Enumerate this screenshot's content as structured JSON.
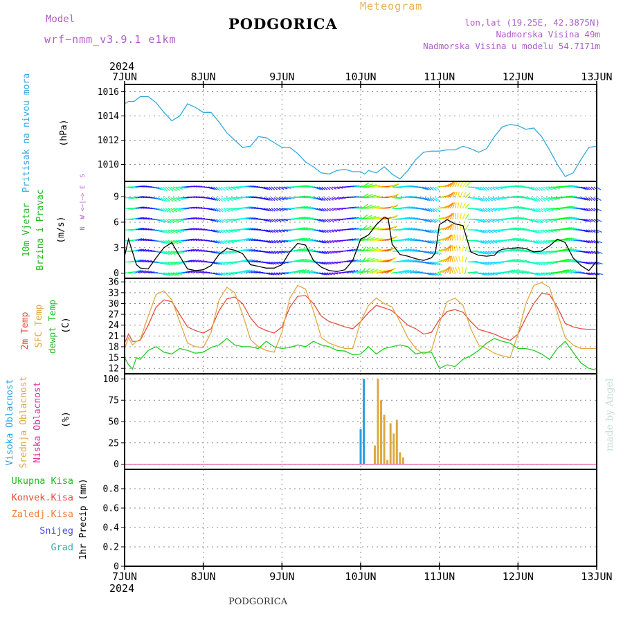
{
  "header": {
    "model_label": "Model",
    "model_name": "wrf−nmm_v3.9.1 e1km",
    "title": "PODGORICA",
    "meteogram": "Meteogram",
    "lonlat": "lon,lat (19.25E, 42.3875N)",
    "elevation": "Nadmorska Visina 49m",
    "model_elevation": "Nadmorska Visina u modelu 54.7171m"
  },
  "footer": {
    "city": "PODGORICA",
    "made_by": "made by Angel"
  },
  "colors": {
    "pressure": "#33aadd",
    "temp2m": "#e84c3d",
    "sfc_temp": "#e0a840",
    "dewpoint": "#22cc22",
    "high_cloud": "#2a9fe0",
    "mid_cloud": "#e0a840",
    "low_cloud": "#e02f9a",
    "purple": "#b05acc"
  },
  "chart_data": {
    "type": "line",
    "x_axis": {
      "year_label": "2024",
      "ticks": [
        "7JUN",
        "8JUN",
        "9JUN",
        "10JUN",
        "11JUN",
        "12JUN",
        "13JUN"
      ]
    },
    "panels": [
      {
        "id": "pressure",
        "ylabels": [
          "Pritisak na nivou mora"
        ],
        "unit": "(hPa)",
        "ylim": [
          1008.6,
          1016.6
        ],
        "yticks": [
          1010,
          1012,
          1014,
          1016
        ],
        "series": [
          {
            "key": "pressure",
            "x": [
              0,
              0.05,
              0.12,
              0.2,
              0.3,
              0.4,
              0.5,
              0.6,
              0.7,
              0.8,
              0.9,
              1.0,
              1.1,
              1.2,
              1.3,
              1.4,
              1.5,
              1.6,
              1.7,
              1.8,
              1.9,
              2.0,
              2.1,
              2.2,
              2.3,
              2.4,
              2.5,
              2.6,
              2.7,
              2.8,
              2.9,
              3.0,
              3.05,
              3.1,
              3.2,
              3.3,
              3.4,
              3.5,
              3.6,
              3.7,
              3.8,
              3.9,
              4.0,
              4.1,
              4.2,
              4.3,
              4.4,
              4.5,
              4.6,
              4.7,
              4.8,
              4.9,
              5.0,
              5.1,
              5.2,
              5.3,
              5.4,
              5.5,
              5.6,
              5.7,
              5.8,
              5.9,
              6.0
            ],
            "y": [
              1015.0,
              1015.2,
              1015.2,
              1015.6,
              1015.6,
              1015.1,
              1014.3,
              1013.6,
              1014.0,
              1015.0,
              1014.7,
              1014.3,
              1014.3,
              1013.5,
              1012.6,
              1012.0,
              1011.4,
              1011.5,
              1012.3,
              1012.2,
              1011.8,
              1011.4,
              1011.4,
              1010.9,
              1010.2,
              1009.8,
              1009.3,
              1009.2,
              1009.5,
              1009.6,
              1009.4,
              1009.4,
              1009.2,
              1009.5,
              1009.3,
              1009.8,
              1009.2,
              1008.8,
              1009.5,
              1010.4,
              1011.0,
              1011.1,
              1011.1,
              1011.2,
              1011.2,
              1011.5,
              1011.3,
              1011.0,
              1011.3,
              1012.3,
              1013.1,
              1013.3,
              1013.2,
              1012.9,
              1013.0,
              1012.3,
              1011.2,
              1010.0,
              1009.0,
              1009.3,
              1010.4,
              1011.4,
              1011.5
            ]
          }
        ]
      },
      {
        "id": "wind",
        "ylabels": [
          "10m Vjetar",
          "Brzina i Pravac"
        ],
        "unit": "(m/s)",
        "compass": "N  W <—|—> E  S",
        "ylim": [
          -0.6,
          10.8
        ],
        "yticks": [
          0,
          3,
          6,
          9
        ],
        "series": [
          {
            "key": "wind_speed",
            "x": [
              0,
              0.05,
              0.1,
              0.15,
              0.2,
              0.3,
              0.4,
              0.5,
              0.6,
              0.7,
              0.8,
              0.9,
              1.0,
              1.1,
              1.2,
              1.3,
              1.4,
              1.5,
              1.6,
              1.7,
              1.8,
              1.9,
              2.0,
              2.1,
              2.2,
              2.3,
              2.4,
              2.5,
              2.6,
              2.7,
              2.8,
              2.9,
              3.0,
              3.1,
              3.2,
              3.3,
              3.35,
              3.4,
              3.5,
              3.6,
              3.7,
              3.8,
              3.9,
              3.95,
              4.0,
              4.1,
              4.2,
              4.3,
              4.4,
              4.5,
              4.6,
              4.7,
              4.75,
              4.8,
              4.9,
              5.0,
              5.1,
              5.2,
              5.3,
              5.4,
              5.5,
              5.6,
              5.7,
              5.8,
              5.9,
              6.0
            ],
            "y": [
              2.0,
              4.0,
              2.5,
              1.0,
              0.6,
              0.5,
              1.8,
              3.0,
              3.6,
              2.0,
              0.5,
              0.3,
              0.4,
              0.9,
              2.2,
              2.9,
              2.7,
              2.3,
              1.0,
              0.8,
              0.6,
              0.6,
              1.0,
              2.5,
              3.5,
              3.3,
              1.5,
              0.7,
              0.3,
              0.2,
              0.4,
              1.5,
              4.0,
              4.5,
              5.7,
              6.6,
              6.4,
              3.4,
              2.2,
              2.0,
              1.7,
              1.5,
              1.8,
              2.4,
              5.7,
              6.3,
              5.8,
              5.6,
              2.5,
              2.1,
              2.0,
              2.1,
              2.6,
              2.8,
              2.9,
              3.0,
              2.9,
              2.5,
              2.6,
              3.2,
              4.0,
              3.6,
              1.8,
              0.9,
              0.3,
              1.4
            ]
          }
        ]
      },
      {
        "id": "temperature",
        "ylabels": [
          "2m Temp",
          "SFC Temp",
          "dewpt Temp"
        ],
        "unit": "(C)",
        "ylim": [
          10.5,
          37
        ],
        "yticks": [
          12,
          15,
          18,
          21,
          24,
          27,
          30,
          33,
          36
        ],
        "series": [
          {
            "key": "temp2m",
            "x": [
              0,
              0.05,
              0.1,
              0.15,
              0.2,
              0.3,
              0.4,
              0.5,
              0.6,
              0.7,
              0.8,
              0.9,
              1.0,
              1.1,
              1.2,
              1.3,
              1.4,
              1.5,
              1.6,
              1.7,
              1.8,
              1.9,
              2.0,
              2.1,
              2.2,
              2.3,
              2.4,
              2.5,
              2.6,
              2.7,
              2.8,
              2.9,
              3.0,
              3.1,
              3.2,
              3.3,
              3.4,
              3.5,
              3.6,
              3.7,
              3.8,
              3.9,
              4.0,
              4.1,
              4.2,
              4.3,
              4.4,
              4.5,
              4.6,
              4.7,
              4.8,
              4.9,
              5.0,
              5.1,
              5.2,
              5.3,
              5.4,
              5.5,
              5.6,
              5.7,
              5.8,
              5.9,
              6.0
            ],
            "y": [
              19.0,
              21.5,
              19.5,
              19.5,
              19.8,
              24.0,
              29.0,
              31.0,
              30.5,
              27.0,
              23.5,
              22.5,
              21.8,
              23.0,
              28.0,
              31.3,
              31.8,
              30.0,
              26.0,
              23.5,
              22.5,
              21.8,
              23.5,
              29.0,
              32.0,
              32.2,
              30.0,
              26.5,
              25.0,
              24.3,
              23.5,
              23.0,
              25.0,
              27.5,
              29.5,
              28.8,
              28.0,
              26.0,
              24.0,
              23.0,
              21.5,
              22.0,
              25.5,
              27.8,
              28.3,
              27.6,
              25.0,
              22.8,
              22.2,
              21.5,
              20.5,
              19.8,
              21.5,
              26.0,
              30.0,
              32.8,
              32.5,
              29.0,
              24.5,
              23.5,
              23.0,
              22.8,
              22.8
            ]
          },
          {
            "key": "sfc_temp",
            "x": [
              0,
              0.05,
              0.1,
              0.15,
              0.2,
              0.3,
              0.4,
              0.5,
              0.6,
              0.7,
              0.8,
              0.9,
              1.0,
              1.1,
              1.2,
              1.3,
              1.4,
              1.5,
              1.6,
              1.7,
              1.8,
              1.9,
              2.0,
              2.1,
              2.2,
              2.3,
              2.4,
              2.5,
              2.6,
              2.7,
              2.8,
              2.9,
              3.0,
              3.1,
              3.2,
              3.3,
              3.4,
              3.5,
              3.6,
              3.7,
              3.8,
              3.9,
              4.0,
              4.1,
              4.2,
              4.3,
              4.4,
              4.5,
              4.6,
              4.7,
              4.8,
              4.9,
              5.0,
              5.1,
              5.2,
              5.3,
              5.4,
              5.5,
              5.6,
              5.7,
              5.8,
              5.9,
              6.0
            ],
            "y": [
              17.5,
              20.5,
              18.5,
              19.5,
              20.0,
              26.5,
              32.5,
              33.5,
              31.0,
              25.0,
              19.0,
              18.0,
              17.8,
              22.0,
              31.0,
              34.5,
              33.0,
              27.0,
              20.0,
              18.0,
              17.0,
              16.5,
              22.0,
              31.5,
              35.0,
              34.0,
              28.0,
              20.5,
              19.0,
              18.2,
              17.5,
              17.5,
              25.0,
              29.5,
              31.5,
              30.0,
              29.0,
              25.0,
              20.5,
              17.5,
              16.0,
              17.0,
              24.5,
              30.5,
              31.5,
              29.5,
              23.0,
              18.5,
              17.5,
              16.2,
              15.5,
              15.0,
              21.5,
              30.0,
              35.0,
              35.8,
              34.5,
              27.5,
              20.5,
              18.5,
              17.5,
              17.5,
              17.5
            ]
          },
          {
            "key": "dewpoint",
            "x": [
              0,
              0.05,
              0.1,
              0.15,
              0.2,
              0.3,
              0.4,
              0.5,
              0.6,
              0.7,
              0.8,
              0.9,
              1.0,
              1.1,
              1.2,
              1.3,
              1.4,
              1.5,
              1.6,
              1.7,
              1.8,
              1.9,
              2.0,
              2.1,
              2.2,
              2.3,
              2.4,
              2.5,
              2.6,
              2.7,
              2.8,
              2.9,
              3.0,
              3.1,
              3.2,
              3.3,
              3.4,
              3.5,
              3.6,
              3.7,
              3.8,
              3.9,
              4.0,
              4.1,
              4.2,
              4.3,
              4.4,
              4.5,
              4.6,
              4.7,
              4.8,
              4.9,
              5.0,
              5.1,
              5.2,
              5.3,
              5.4,
              5.5,
              5.6,
              5.7,
              5.8,
              5.9,
              6.0
            ],
            "y": [
              15.0,
              13.0,
              11.8,
              15.0,
              14.5,
              17.0,
              18.0,
              16.5,
              16.0,
              17.5,
              17.0,
              16.2,
              16.5,
              17.8,
              18.5,
              20.3,
              18.5,
              18.0,
              18.0,
              17.5,
              19.5,
              18.0,
              17.5,
              17.8,
              18.5,
              18.0,
              19.5,
              18.5,
              18.0,
              17.0,
              16.8,
              15.8,
              16.0,
              18.0,
              16.0,
              17.5,
              18.0,
              18.5,
              18.0,
              16.0,
              16.5,
              16.5,
              12.0,
              13.0,
              12.5,
              14.5,
              15.5,
              17.0,
              19.0,
              20.3,
              19.5,
              19.0,
              17.5,
              17.5,
              17.0,
              16.0,
              14.5,
              17.5,
              19.5,
              16.5,
              13.5,
              12.0,
              11.5
            ]
          }
        ]
      },
      {
        "id": "clouds",
        "ylabels": [
          "Visoka Oblacnost",
          "Srednja Oblacnost",
          "Niska Oblacnost"
        ],
        "unit": "(%)",
        "ylim": [
          -6,
          106
        ],
        "yticks": [
          0,
          25,
          50,
          75,
          100
        ],
        "bars": [
          {
            "key": "high_cloud",
            "x": [
              3.0,
              3.04
            ],
            "y": [
              41,
              100
            ]
          },
          {
            "key": "mid_cloud",
            "x": [
              3.18,
              3.22,
              3.26,
              3.3,
              3.34,
              3.38,
              3.42,
              3.46,
              3.5,
              3.54
            ],
            "y": [
              22,
              100,
              75,
              58,
              5,
              48,
              36,
              52,
              14,
              8
            ]
          }
        ],
        "series": [
          {
            "key": "low_cloud",
            "x": [
              0,
              6
            ],
            "y": [
              0,
              0
            ]
          }
        ]
      },
      {
        "id": "precip",
        "ylabels": [
          "1hr Precip (mm)"
        ],
        "unit": "",
        "ylim": [
          0,
          1
        ],
        "yticks": [
          0,
          0.2,
          0.4,
          0.6,
          0.8
        ],
        "ytick_labels": [
          "0",
          "0.2",
          "0.4",
          "0.6",
          "0.8"
        ],
        "legend": [
          "Ukupna Kisa",
          "Konvek.Kisa",
          "Zaledj.Kisa",
          "Snijeg",
          "Grad"
        ]
      }
    ]
  }
}
